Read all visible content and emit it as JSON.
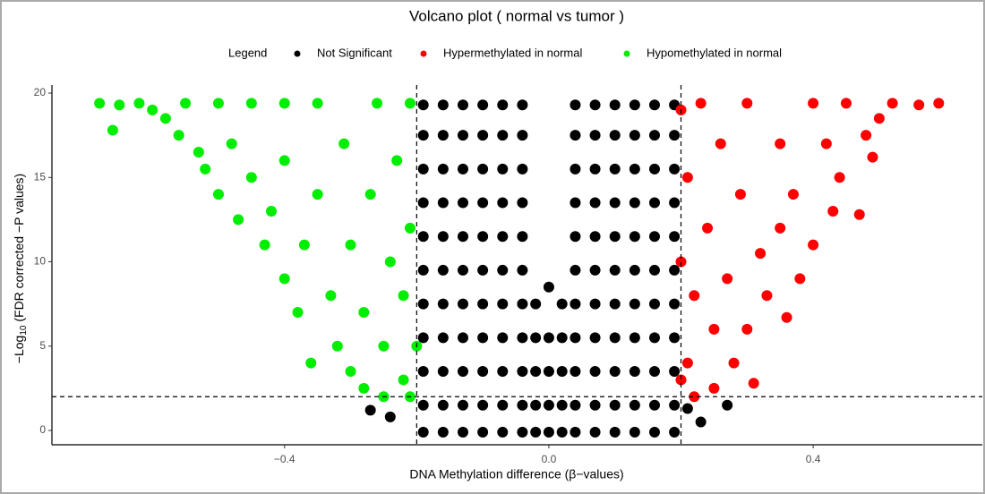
{
  "chart_data": {
    "type": "scatter",
    "title": "Volcano plot ( normal vs tumor )",
    "legend_title": "Legend",
    "legend_position": "top",
    "x_label": "DNA Methylation difference (β−values)",
    "y_label_parts": [
      "−Log",
      "10",
      " (FDR corrected −P values)"
    ],
    "xlim": [
      -0.752,
      0.656
    ],
    "ylim": [
      -0.85,
      20.48
    ],
    "xticks": [
      {
        "value": -0.4,
        "label": "−0.4"
      },
      {
        "value": 0,
        "label": "0.0"
      },
      0.4
    ],
    "yticks": [
      0,
      5,
      10,
      15,
      20
    ],
    "threshold_x": [
      -0.2,
      0.2
    ],
    "threshold_y": 2,
    "series": [
      {
        "name": "Not Significant",
        "color": "#000000",
        "x": [
          -0.19,
          -0.19,
          -0.19,
          -0.19,
          -0.19,
          -0.19,
          -0.19,
          -0.19,
          -0.19,
          -0.19,
          -0.19,
          -0.16,
          -0.16,
          -0.16,
          -0.16,
          -0.16,
          -0.16,
          -0.16,
          -0.16,
          -0.16,
          -0.16,
          -0.16,
          -0.13,
          -0.13,
          -0.13,
          -0.13,
          -0.13,
          -0.13,
          -0.13,
          -0.13,
          -0.13,
          -0.13,
          -0.13,
          -0.1,
          -0.1,
          -0.1,
          -0.1,
          -0.1,
          -0.1,
          -0.1,
          -0.1,
          -0.1,
          -0.1,
          -0.1,
          -0.07,
          -0.07,
          -0.07,
          -0.07,
          -0.07,
          -0.07,
          -0.07,
          -0.07,
          -0.07,
          -0.07,
          -0.07,
          -0.04,
          -0.04,
          -0.04,
          -0.04,
          -0.04,
          -0.04,
          -0.04,
          -0.04,
          -0.04,
          -0.04,
          -0.04,
          0.04,
          0.04,
          0.04,
          0.04,
          0.04,
          0.04,
          0.04,
          0.04,
          0.04,
          0.04,
          0.04,
          0.07,
          0.07,
          0.07,
          0.07,
          0.07,
          0.07,
          0.07,
          0.07,
          0.07,
          0.07,
          0.07,
          0.1,
          0.1,
          0.1,
          0.1,
          0.1,
          0.1,
          0.1,
          0.1,
          0.1,
          0.1,
          0.1,
          0.13,
          0.13,
          0.13,
          0.13,
          0.13,
          0.13,
          0.13,
          0.13,
          0.13,
          0.13,
          0.13,
          0.16,
          0.16,
          0.16,
          0.16,
          0.16,
          0.16,
          0.16,
          0.16,
          0.16,
          0.16,
          0.16,
          0.19,
          0.19,
          0.19,
          0.19,
          0.19,
          0.19,
          0.19,
          0.19,
          0.19,
          0.19,
          0.19,
          -0.02,
          -0.02,
          -0.02,
          -0.02,
          -0.02,
          0,
          0,
          0,
          0,
          0,
          0.02,
          0.02,
          0.02,
          0.02,
          0.02,
          -0.27,
          -0.24,
          0.21,
          0.23,
          0.27
        ],
        "values": [
          -0.1,
          1.5,
          3.5,
          5.5,
          7.5,
          9.5,
          11.5,
          13.5,
          15.5,
          17.5,
          19.3,
          -0.1,
          1.5,
          3.5,
          5.5,
          7.5,
          9.5,
          11.5,
          13.5,
          15.5,
          17.5,
          19.3,
          -0.1,
          1.5,
          3.5,
          5.5,
          7.5,
          9.5,
          11.5,
          13.5,
          15.5,
          17.5,
          19.3,
          -0.1,
          1.5,
          3.5,
          5.5,
          7.5,
          9.5,
          11.5,
          13.5,
          15.5,
          17.5,
          19.3,
          -0.1,
          1.5,
          3.5,
          5.5,
          7.5,
          9.5,
          11.5,
          13.5,
          15.5,
          17.5,
          19.3,
          -0.1,
          1.5,
          3.5,
          5.5,
          7.5,
          9.5,
          11.5,
          13.5,
          15.5,
          17.5,
          19.3,
          -0.1,
          1.5,
          3.5,
          5.5,
          7.5,
          9.5,
          11.5,
          13.5,
          15.5,
          17.5,
          19.3,
          -0.1,
          1.5,
          3.5,
          5.5,
          7.5,
          9.5,
          11.5,
          13.5,
          15.5,
          17.5,
          19.3,
          -0.1,
          1.5,
          3.5,
          5.5,
          7.5,
          9.5,
          11.5,
          13.5,
          15.5,
          17.5,
          19.3,
          -0.1,
          1.5,
          3.5,
          5.5,
          7.5,
          9.5,
          11.5,
          13.5,
          15.5,
          17.5,
          19.3,
          -0.1,
          1.5,
          3.5,
          5.5,
          7.5,
          9.5,
          11.5,
          13.5,
          15.5,
          17.5,
          19.3,
          -0.1,
          1.5,
          3.5,
          5.5,
          7.5,
          9.5,
          11.5,
          13.5,
          15.5,
          17.5,
          19.3,
          -0.1,
          1.5,
          3.5,
          5.5,
          7.5,
          -0.1,
          1.5,
          3.5,
          5.5,
          8.5,
          -0.1,
          1.5,
          3.5,
          5.5,
          7.5,
          1.2,
          0.8,
          1.3,
          0.5,
          1.5
        ]
      },
      {
        "name": "Hypermethylated in normal",
        "color": "#ff0000",
        "x": [
          0.59,
          0.56,
          0.52,
          0.5,
          0.49,
          0.48,
          0.47,
          0.45,
          0.44,
          0.43,
          0.42,
          0.4,
          0.4,
          0.38,
          0.37,
          0.36,
          0.35,
          0.35,
          0.33,
          0.32,
          0.31,
          0.3,
          0.3,
          0.29,
          0.28,
          0.27,
          0.26,
          0.25,
          0.25,
          0.24,
          0.23,
          0.22,
          0.22,
          0.21,
          0.21,
          0.2,
          0.2,
          0.2
        ],
        "values": [
          19.4,
          19.3,
          19.4,
          18.5,
          16.2,
          17.5,
          12.8,
          19.4,
          15,
          13,
          17,
          11,
          19.4,
          9,
          14,
          6.7,
          12,
          17,
          8,
          10.5,
          2.8,
          19.4,
          6,
          14,
          4,
          9,
          17,
          2.5,
          6,
          12,
          19.4,
          2,
          8,
          4,
          15,
          3,
          10,
          19
        ]
      },
      {
        "name": "Hypomethylated in normal",
        "color": "#00ee00",
        "x": [
          -0.68,
          -0.65,
          -0.66,
          -0.62,
          -0.6,
          -0.58,
          -0.56,
          -0.55,
          -0.53,
          -0.52,
          -0.5,
          -0.5,
          -0.48,
          -0.47,
          -0.45,
          -0.45,
          -0.43,
          -0.42,
          -0.4,
          -0.4,
          -0.4,
          -0.38,
          -0.37,
          -0.36,
          -0.35,
          -0.35,
          -0.33,
          -0.32,
          -0.31,
          -0.3,
          -0.3,
          -0.28,
          -0.28,
          -0.27,
          -0.26,
          -0.25,
          -0.25,
          -0.24,
          -0.23,
          -0.22,
          -0.22,
          -0.21,
          -0.21,
          -0.21,
          -0.2
        ],
        "values": [
          19.4,
          19.3,
          17.8,
          19.4,
          19,
          18.5,
          17.5,
          19.4,
          16.5,
          15.5,
          19.4,
          14,
          17,
          12.5,
          15,
          19.4,
          11,
          13,
          9,
          16,
          19.4,
          7,
          11,
          4,
          14,
          19.4,
          8,
          5,
          17,
          3.5,
          11,
          2.5,
          7,
          14,
          19.4,
          2,
          5,
          10,
          16,
          3,
          8,
          2,
          12,
          19.4,
          5
        ]
      }
    ]
  }
}
